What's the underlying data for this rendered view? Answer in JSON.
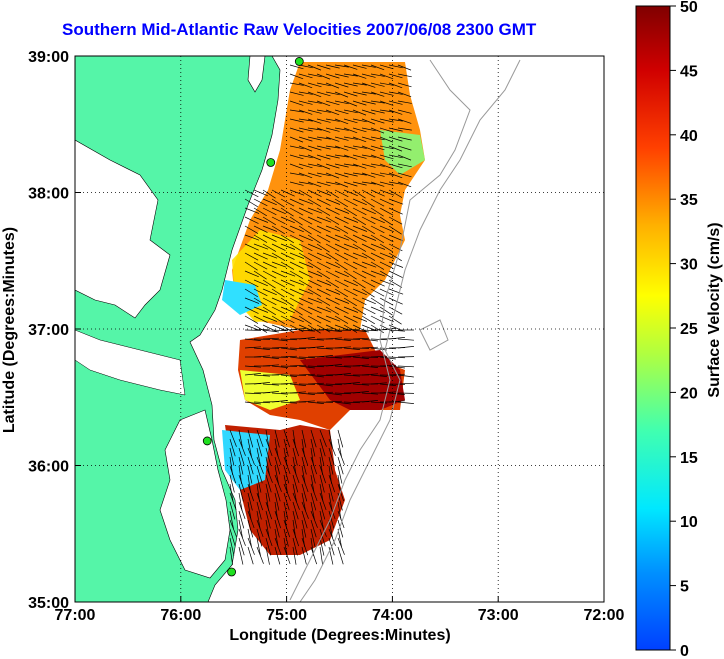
{
  "title": "Southern Mid-Atlantic Raw Velocities 2007/06/08 2300 GMT",
  "map": {
    "xlabel": "Longitude (Degrees:Minutes)",
    "ylabel": "Latitude (Degrees:Minutes)",
    "x_ticks": [
      "77:00",
      "76:00",
      "75:00",
      "74:00",
      "73:00",
      "72:00"
    ],
    "y_ticks": [
      "39:00",
      "38:00",
      "37:00",
      "36:00",
      "35:00"
    ],
    "lon_range": [
      -77,
      -72
    ],
    "lat_range": [
      35,
      39
    ],
    "land_color": "#55f5a8",
    "grid": true
  },
  "colorbar": {
    "label": "Surface Velocity (cm/s)",
    "ticks": [
      "50",
      "45",
      "40",
      "35",
      "30",
      "25",
      "20",
      "15",
      "10",
      "5",
      "0"
    ],
    "range": [
      0,
      50
    ],
    "colormap": "jet"
  },
  "stations": [
    {
      "lon": -74.88,
      "lat": 38.96
    },
    {
      "lon": -75.15,
      "lat": 38.22
    },
    {
      "lon": -75.75,
      "lat": 36.18
    },
    {
      "lon": -75.52,
      "lat": 35.22
    }
  ]
}
